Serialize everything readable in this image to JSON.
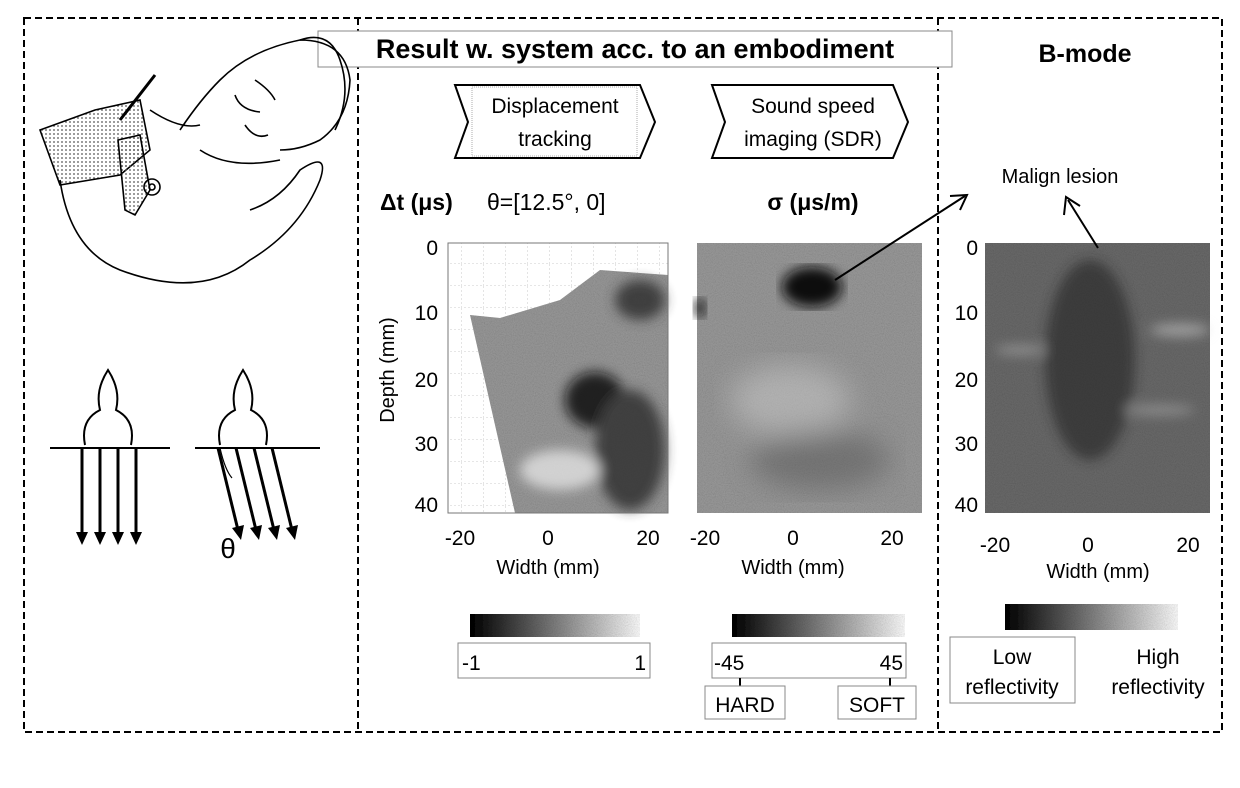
{
  "title": "Result w. system acc. to an embodiment",
  "bmode_title": "B-mode",
  "steps": {
    "displacement": [
      "Displacement",
      "tracking"
    ],
    "sound_speed": [
      "Sound speed",
      "imaging (SDR)"
    ]
  },
  "left_panel": {
    "theta_symbol": "θ"
  },
  "plots": {
    "displacement": {
      "quantity": "Δt (μs)",
      "angle": "θ=[12.5°, 0]",
      "ylabel": "Depth (mm)",
      "xlabel": "Width (mm)",
      "yticks": [
        "0",
        "10",
        "20",
        "30",
        "40"
      ],
      "xticks": [
        "-20",
        "0",
        "20"
      ],
      "colorbar": {
        "min": "-1",
        "max": "1"
      }
    },
    "sdr": {
      "quantity": "σ (μs/m)",
      "xlabel": "Width (mm)",
      "xticks": [
        "-20",
        "0",
        "20"
      ],
      "colorbar": {
        "min": "-45",
        "max": "45",
        "min_label": "HARD",
        "max_label": "SOFT"
      }
    },
    "bmode": {
      "annotation": "Malign lesion",
      "xlabel": "Width (mm)",
      "yticks": [
        "0",
        "10",
        "20",
        "30",
        "40"
      ],
      "xticks": [
        "-20",
        "0",
        "20"
      ],
      "colorbar": {
        "min_label": [
          "Low",
          "reflectivity"
        ],
        "max_label": [
          "High",
          "reflectivity"
        ]
      }
    }
  }
}
